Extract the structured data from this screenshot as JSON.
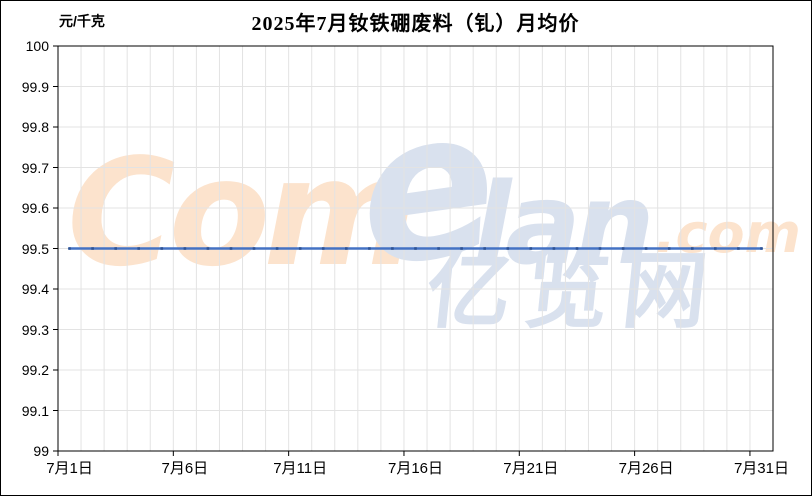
{
  "header": {
    "unit_label": "元/千克",
    "title": "2025年7月钕铁硼废料（钆）月均价"
  },
  "watermark": {
    "segment_com": "Com",
    "segment_e": "e",
    "segment_lan": "lan",
    "segment_domain": ".com",
    "segment_cn": "亿览网",
    "orange_color": "#fce3cd",
    "blue_color": "#d9e1ee"
  },
  "chart_data": {
    "type": "line",
    "title": "2025年7月钕铁硼废料（钆）月均价",
    "ylabel": "元/千克",
    "xlabel": "",
    "ylim": [
      99,
      100
    ],
    "ytick_step": 0.1,
    "ytick_labels": [
      "100",
      "99.9",
      "99.8",
      "99.7",
      "99.6",
      "99.5",
      "99.4",
      "99.3",
      "99.2",
      "99.1",
      "99"
    ],
    "x_tick_labels": [
      "7月1日",
      "7月6日",
      "7月11日",
      "7月16日",
      "7月21日",
      "7月26日",
      "7月31日"
    ],
    "x_tick_interval_days": 5,
    "n_points": 31,
    "series": [
      {
        "name": "月均价",
        "color": "#4472c4",
        "marker_color": "#2e5396",
        "values": [
          99.5,
          99.5,
          99.5,
          99.5,
          99.5,
          99.5,
          99.5,
          99.5,
          99.5,
          99.5,
          99.5,
          99.5,
          99.5,
          99.5,
          99.5,
          99.5,
          99.5,
          99.5,
          99.5,
          99.5,
          99.5,
          99.5,
          99.5,
          99.5,
          99.5,
          99.5,
          99.5,
          99.5,
          99.5,
          99.5,
          99.5
        ]
      }
    ],
    "grid": true,
    "grid_color": "#e3e3e3",
    "axis_color": "#000000",
    "legend_position": "none"
  }
}
